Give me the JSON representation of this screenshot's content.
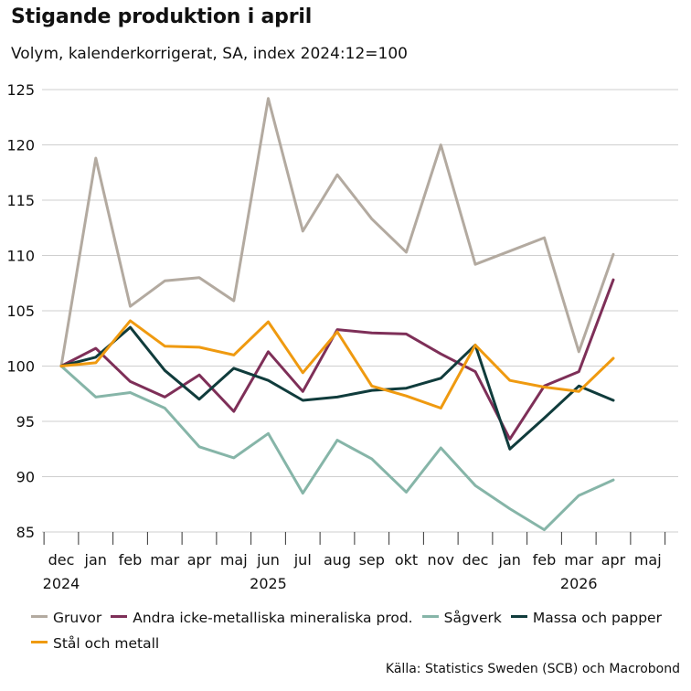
{
  "title": "Stigande produktion i april",
  "subtitle": "Volym, kalenderkorrigerat, SA, index 2024:12=100",
  "source": "Källa: Statistics Sweden (SCB) och Macrobond",
  "chart_data": {
    "type": "line",
    "x": [
      "2024-12",
      "2025-01",
      "2025-02",
      "2025-03",
      "2025-04",
      "2025-05",
      "2025-06",
      "2025-07",
      "2025-08",
      "2025-09",
      "2025-10",
      "2025-11",
      "2025-12",
      "2026-01",
      "2026-02",
      "2026-03",
      "2026-04"
    ],
    "month_labels": [
      "dec",
      "jan",
      "feb",
      "mar",
      "apr",
      "maj",
      "jun",
      "jul",
      "aug",
      "sep",
      "okt",
      "nov",
      "dec",
      "jan",
      "feb",
      "mar",
      "apr",
      "maj"
    ],
    "year_labels": [
      {
        "label": "2024",
        "month_index": 0
      },
      {
        "label": "2025",
        "month_index": 6
      },
      {
        "label": "2026",
        "month_index": 15
      }
    ],
    "ylim": [
      85,
      125
    ],
    "yticks": [
      85,
      90,
      95,
      100,
      105,
      110,
      115,
      120,
      125
    ],
    "grid": true,
    "legend_position": "bottom",
    "series": [
      {
        "name": "Gruvor",
        "color": "#b3aaa0",
        "values": [
          100,
          118.8,
          105.4,
          107.7,
          108.0,
          105.9,
          124.2,
          112.2,
          117.3,
          113.3,
          110.3,
          120.0,
          109.2,
          110.4,
          111.6,
          101.3,
          110.1
        ]
      },
      {
        "name": "Andra icke-metalliska mineraliska prod.",
        "color": "#7e2f58",
        "values": [
          100,
          101.6,
          98.6,
          97.2,
          99.2,
          95.9,
          101.3,
          97.7,
          103.3,
          103.0,
          102.9,
          101.1,
          99.5,
          93.4,
          98.2,
          99.5,
          107.8
        ]
      },
      {
        "name": "Sågverk",
        "color": "#86b5a8",
        "values": [
          100,
          97.2,
          97.6,
          96.2,
          92.7,
          91.7,
          93.9,
          88.5,
          93.3,
          91.6,
          88.6,
          92.6,
          89.2,
          87.1,
          85.2,
          88.3,
          89.7
        ]
      },
      {
        "name": "Massa och papper",
        "color": "#103c3c",
        "values": [
          100,
          100.8,
          103.5,
          99.6,
          97.0,
          99.8,
          98.7,
          96.9,
          97.2,
          97.8,
          98.0,
          98.9,
          101.9,
          92.5,
          95.3,
          98.2,
          96.9
        ]
      },
      {
        "name": "Stål och metall",
        "color": "#ef9a10",
        "values": [
          100,
          100.3,
          104.1,
          101.8,
          101.7,
          101.0,
          104.0,
          99.4,
          103.1,
          98.2,
          97.3,
          96.2,
          101.9,
          98.7,
          98.1,
          97.7,
          100.7
        ]
      }
    ]
  }
}
